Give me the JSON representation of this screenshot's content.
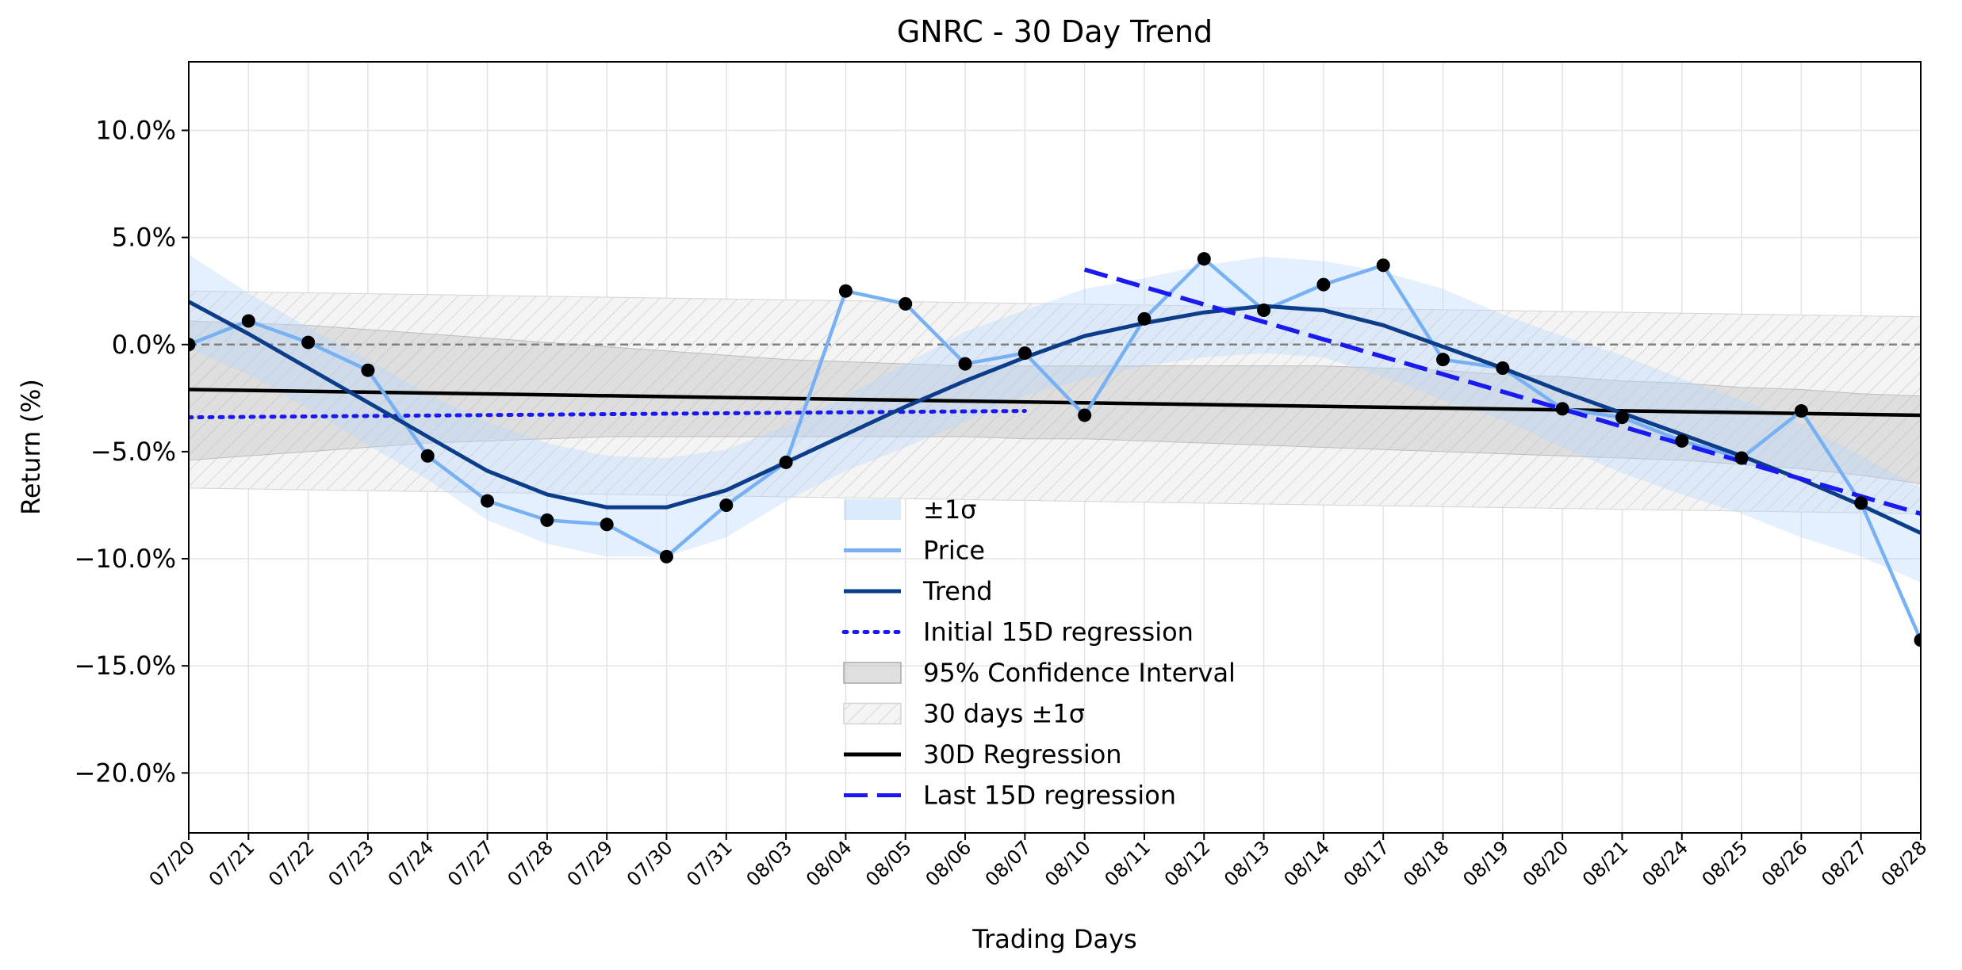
{
  "chart_data": {
    "type": "line",
    "title": "GNRC - 30 Day Trend",
    "xlabel": "Trading Days",
    "ylabel": "Return (%)",
    "ylim": [
      -22.8,
      13.2
    ],
    "yticks": [
      10,
      5,
      0,
      -5,
      -10,
      -15,
      -20
    ],
    "ytick_labels": [
      "10.0%",
      "5.0%",
      "0.0%",
      "−5.0%",
      "−10.0%",
      "−15.0%",
      "−20.0%"
    ],
    "grid": true,
    "legend_position": "lower center",
    "categories": [
      "07/20",
      "07/21",
      "07/22",
      "07/23",
      "07/24",
      "07/27",
      "07/28",
      "07/29",
      "07/30",
      "07/31",
      "08/03",
      "08/04",
      "08/05",
      "08/06",
      "08/07",
      "08/10",
      "08/11",
      "08/12",
      "08/13",
      "08/14",
      "08/17",
      "08/18",
      "08/19",
      "08/20",
      "08/21",
      "08/24",
      "08/25",
      "08/26",
      "08/27",
      "08/28"
    ],
    "series": [
      {
        "name": "Price",
        "color": "#77b1f4",
        "values": [
          0.0,
          1.1,
          0.1,
          -1.2,
          -5.2,
          -7.3,
          -8.2,
          -8.4,
          -9.9,
          -7.5,
          -5.5,
          2.5,
          1.9,
          -0.9,
          -0.4,
          -3.3,
          1.2,
          4.0,
          1.6,
          2.8,
          3.7,
          -0.7,
          -1.1,
          -3.0,
          -3.4,
          -4.5,
          -5.3,
          -3.1,
          -7.4,
          -13.8
        ]
      },
      {
        "name": "Trend",
        "color": "#0b3d8b",
        "values": [
          2.0,
          0.5,
          -1.1,
          -2.7,
          -4.3,
          -5.9,
          -7.0,
          -7.6,
          -7.6,
          -6.8,
          -5.5,
          -4.2,
          -2.9,
          -1.7,
          -0.6,
          0.4,
          1.0,
          1.5,
          1.8,
          1.6,
          0.9,
          -0.1,
          -1.1,
          -2.2,
          -3.2,
          -4.2,
          -5.2,
          -6.3,
          -7.5,
          -8.8
        ]
      },
      {
        "name": "±1σ",
        "color": "#cfe3fb",
        "upper": [
          4.2,
          2.4,
          0.8,
          -0.7,
          -2.3,
          -3.6,
          -4.6,
          -5.2,
          -5.3,
          -4.9,
          -3.8,
          -2.4,
          -0.9,
          0.6,
          1.6,
          2.6,
          3.1,
          3.7,
          4.1,
          3.9,
          3.4,
          2.6,
          1.4,
          0.4,
          -0.5,
          -1.6,
          -2.6,
          -3.7,
          -5.2,
          -6.7
        ],
        "lower": [
          -0.2,
          -1.4,
          -3.0,
          -4.7,
          -6.3,
          -8.2,
          -9.3,
          -9.9,
          -9.9,
          -9.0,
          -7.3,
          -5.9,
          -4.8,
          -3.6,
          -2.4,
          -1.6,
          -1.0,
          -0.6,
          -0.4,
          -0.6,
          -1.5,
          -2.6,
          -3.5,
          -4.8,
          -6.0,
          -7.0,
          -7.9,
          -9.0,
          -9.9,
          -11.1
        ]
      },
      {
        "name": "Initial 15D regression",
        "color": "#1a1af0",
        "x_range": [
          0,
          14
        ],
        "endpoints": [
          -3.4,
          -3.1
        ]
      },
      {
        "name": "95% Confidence Interval",
        "color": "#bbbbbb",
        "upper": [
          1.1,
          1.0,
          0.9,
          0.7,
          0.5,
          0.3,
          0.1,
          -0.1,
          -0.3,
          -0.5,
          -0.7,
          -0.8,
          -0.9,
          -1.0,
          -1.0,
          -1.0,
          -1.0,
          -1.0,
          -1.0,
          -1.0,
          -1.1,
          -1.2,
          -1.4,
          -1.5,
          -1.7,
          -1.8,
          -2.0,
          -2.1,
          -2.3,
          -2.4
        ],
        "lower": [
          -5.4,
          -5.2,
          -5.0,
          -4.8,
          -4.6,
          -4.5,
          -4.4,
          -4.3,
          -4.3,
          -4.3,
          -4.3,
          -4.3,
          -4.3,
          -4.3,
          -4.4,
          -4.4,
          -4.5,
          -4.6,
          -4.7,
          -4.8,
          -4.9,
          -5.0,
          -5.1,
          -5.2,
          -5.3,
          -5.4,
          -5.6,
          -5.8,
          -6.1,
          -6.5
        ]
      },
      {
        "name": "30 days ±1σ",
        "color": "#dddddd",
        "upper": [
          2.5,
          1.3
        ],
        "lower": [
          -6.7,
          -7.9
        ]
      },
      {
        "name": "30D Regression",
        "color": "#000000",
        "endpoints": [
          -2.1,
          -3.3
        ]
      },
      {
        "name": "Last 15D regression",
        "color": "#1a1af0",
        "x_range": [
          15,
          29
        ],
        "endpoints": [
          3.5,
          -7.9
        ]
      }
    ],
    "zero_line": 0
  }
}
